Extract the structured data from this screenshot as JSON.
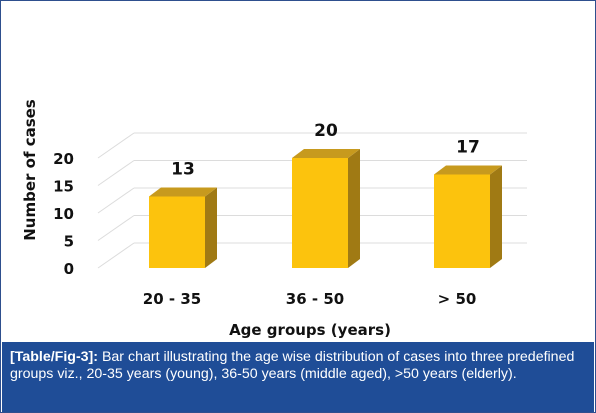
{
  "chart_data": {
    "type": "bar",
    "categories": [
      "20 - 35",
      "36 - 50",
      "> 50"
    ],
    "values": [
      13,
      20,
      17
    ],
    "data_labels": [
      "13",
      "20",
      "17"
    ],
    "title": "",
    "xlabel": "Age groups (years)",
    "ylabel": "Number of cases",
    "ylim": [
      0,
      20
    ],
    "yticks": [
      "0",
      "5",
      "10",
      "15",
      "20"
    ],
    "grid": true,
    "style": "3d",
    "colors": {
      "bar_front": "#fcc30d",
      "bar_side": "#a07a14",
      "bar_top": "#c79a1e",
      "grid": "#dcdcdc",
      "text": "#111111"
    }
  },
  "caption": {
    "ref": "[Table/Fig-3]:",
    "text": " Bar chart illustrating the age wise distribution of cases into three predefined groups viz., 20-35 years (young), 36-50 years (middle aged), >50 years (elderly)."
  },
  "colors": {
    "caption_bg": "#1f4d97",
    "caption_text": "#ffffff",
    "border": "#2e4f8e"
  }
}
